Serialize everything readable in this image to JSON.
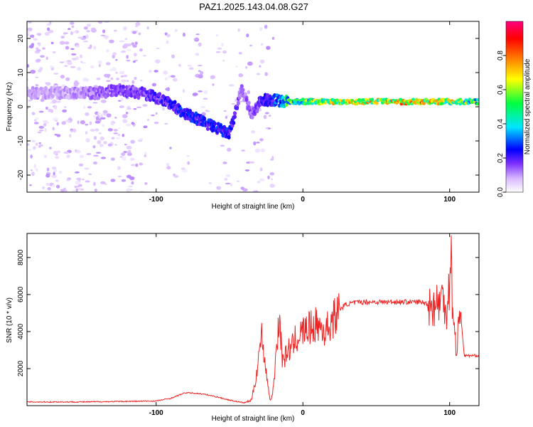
{
  "title": "PAZ1.2025.143.04.08.G27",
  "chart_data": [
    {
      "type": "heatmap",
      "name": "spectrogram",
      "xlabel": "Height of straight line (km)",
      "ylabel": "Frequency (Hz)",
      "xlim": [
        -188,
        120
      ],
      "ylim": [
        -25,
        25
      ],
      "xticks": [
        -100,
        0,
        100
      ],
      "xtick_labels": [
        "-100",
        "0",
        "100"
      ],
      "yticks": [
        -20,
        -10,
        0,
        10,
        20
      ],
      "ytick_labels": [
        "-20",
        "-10",
        "0",
        "10",
        "20"
      ],
      "colorbar": {
        "label": "Normalized spectral amplitude",
        "range": [
          0,
          1
        ],
        "ticks": [
          0,
          0.2,
          0.4,
          0.6,
          0.8
        ],
        "tick_labels": [
          "0.0",
          "0.2",
          "0.4",
          "0.6",
          "0.8"
        ],
        "colors": [
          "#ffffff",
          "#d8b8ff",
          "#7a2cff",
          "#0000ff",
          "#00e5ff",
          "#00ff40",
          "#ffff00",
          "#ff8000",
          "#ff0000",
          "#ff0080"
        ]
      },
      "features": {
        "ridge_x": [
          -188,
          -160,
          -140,
          -125,
          -110,
          -95,
          -80,
          -65,
          -50,
          -42,
          -35,
          -28,
          -20,
          -10,
          0,
          20,
          50,
          80,
          100,
          120
        ],
        "ridge_freq": [
          4,
          4,
          4,
          5,
          4,
          2,
          -2,
          -5,
          -8,
          5,
          -2,
          2,
          2,
          1.5,
          1.5,
          1.5,
          1.5,
          1.5,
          1.5,
          1.5
        ],
        "ridge_amp": [
          0.15,
          0.15,
          0.2,
          0.25,
          0.25,
          0.3,
          0.35,
          0.35,
          0.35,
          0.2,
          0.2,
          0.3,
          0.35,
          0.6,
          0.6,
          0.7,
          0.75,
          0.8,
          0.7,
          0.6
        ]
      }
    },
    {
      "type": "line",
      "name": "snr",
      "xlabel": "Height of straight line (km)",
      "ylabel": "SNR (10 * v/v)",
      "xlim": [
        -188,
        120
      ],
      "ylim": [
        0,
        9300
      ],
      "xticks": [
        -100,
        0,
        100
      ],
      "xtick_labels": [
        "-100",
        "0",
        "100"
      ],
      "yticks": [
        2000,
        4000,
        6000,
        8000
      ],
      "ytick_labels": [
        "2000",
        "4000",
        "6000",
        "8000"
      ],
      "color": "#ee2222",
      "x": [
        -188,
        -150,
        -100,
        -90,
        -80,
        -70,
        -60,
        -50,
        -40,
        -35,
        -32,
        -30,
        -28,
        -26,
        -24,
        -22,
        -20,
        -18,
        -16,
        -14,
        -12,
        -10,
        -8,
        -5,
        0,
        5,
        10,
        15,
        20,
        25,
        30,
        40,
        50,
        60,
        70,
        80,
        85,
        90,
        95,
        98,
        100,
        101,
        102,
        103,
        105,
        107,
        110,
        115,
        120
      ],
      "values": [
        200,
        200,
        250,
        400,
        700,
        650,
        500,
        300,
        150,
        300,
        1500,
        2800,
        3800,
        2500,
        1200,
        200,
        1000,
        3200,
        4800,
        2500,
        2600,
        3100,
        3000,
        3600,
        4000,
        4200,
        4400,
        4000,
        4600,
        5200,
        5500,
        5600,
        5600,
        5600,
        5600,
        5600,
        5500,
        5400,
        5800,
        5300,
        6500,
        9200,
        5000,
        4000,
        3000,
        5400,
        2700,
        2700,
        2700
      ]
    }
  ]
}
